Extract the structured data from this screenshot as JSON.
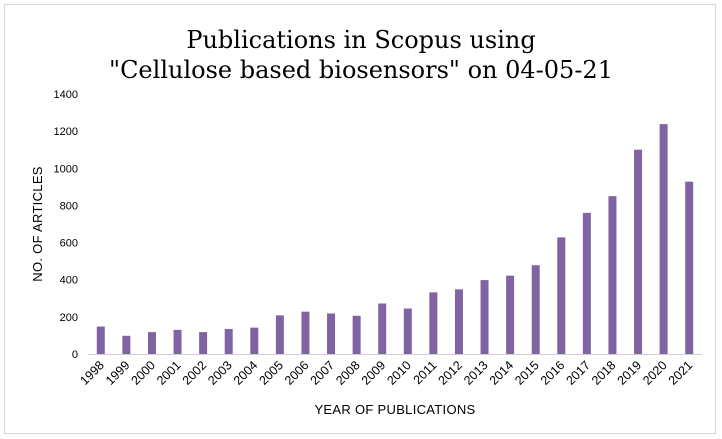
{
  "chart_data": {
    "type": "bar",
    "title_line1": "Publications in Scopus using",
    "title_line2": "\"Cellulose based biosensors\" on 04-05-21",
    "xlabel": "YEAR  OF  PUBLICATIONS",
    "ylabel": "NO. OF ARTICLES",
    "ylim": [
      0,
      1400
    ],
    "yticks": [
      "0",
      "200",
      "400",
      "600",
      "800",
      "1000",
      "1200",
      "1400"
    ],
    "grid": false,
    "bar_color": "#8064a2",
    "categories": [
      "1998",
      "1999",
      "2000",
      "2001",
      "2002",
      "2003",
      "2004",
      "2005",
      "2006",
      "2007",
      "2008",
      "2009",
      "2010",
      "2011",
      "2012",
      "2013",
      "2014",
      "2015",
      "2016",
      "2017",
      "2018",
      "2019",
      "2020",
      "2021"
    ],
    "values": [
      148,
      98,
      118,
      130,
      118,
      135,
      142,
      208,
      228,
      218,
      206,
      272,
      245,
      332,
      348,
      398,
      422,
      478,
      628,
      760,
      850,
      1100,
      1238,
      928
    ]
  }
}
